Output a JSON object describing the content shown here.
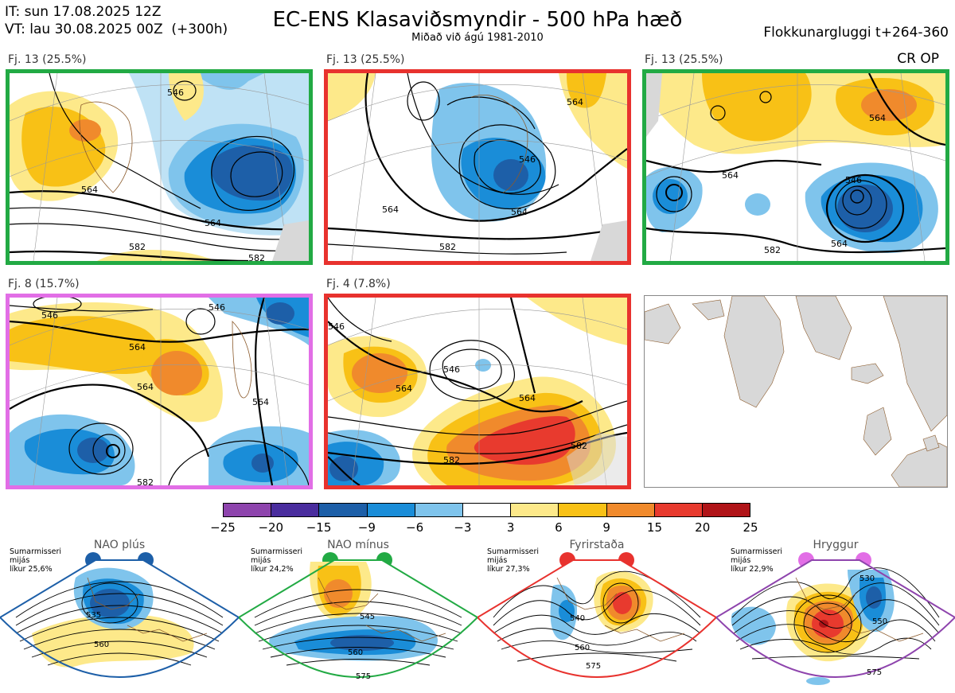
{
  "header": {
    "issue_time": "IT: sun 17.08.2025 12Z",
    "valid_time": "VT: lau 30.08.2025 00Z  (+300h)",
    "title": "EC-ENS Klasaviðsmyndir - 500 hPa hæð",
    "subtitle": "Miðað við ágú 1981-2010",
    "window": "Flokkunargluggi t+264-360",
    "crop_label": "CR OP"
  },
  "panels": [
    {
      "label": "Fj. 13 (25.5%)",
      "border_color": "#22aa44",
      "contours": [
        "546",
        "564",
        "564",
        "582",
        "582"
      ]
    },
    {
      "label": "Fj. 13 (25.5%)",
      "border_color": "#e8322e",
      "contours": [
        "546",
        "564",
        "564",
        "582",
        "564"
      ]
    },
    {
      "label": "Fj. 13 (25.5%)",
      "border_color": "#22aa44",
      "contours": [
        "546",
        "564",
        "564",
        "582",
        "564"
      ]
    },
    {
      "label": "Fj. 8 (15.7%)",
      "border_color": "#e26ee6",
      "contours": [
        "546",
        "546",
        "564",
        "564",
        "564",
        "582"
      ]
    },
    {
      "label": "Fj. 4 (7.8%)",
      "border_color": "#e8322e",
      "contours": [
        "546",
        "546",
        "564",
        "564",
        "582",
        "582"
      ]
    }
  ],
  "colorbar": {
    "colors": [
      "#8e44ad",
      "#4a2d9e",
      "#1d5fa8",
      "#1a8dd8",
      "#7fc4ec",
      "#ffffff",
      "#fde98a",
      "#f8c116",
      "#f08a2c",
      "#e83a2e",
      "#b01418"
    ],
    "ticks": [
      "−25",
      "−20",
      "−15",
      "−9",
      "−6",
      "−3",
      "3",
      "6",
      "9",
      "15",
      "20",
      "25"
    ]
  },
  "regimes": [
    {
      "title": "NAO plús",
      "info": [
        "Sumarmisseri",
        "mijás",
        "líkur 25,6%"
      ],
      "color": "#1d5fa8",
      "labels": [
        "535",
        "560"
      ]
    },
    {
      "title": "NAO mínus",
      "info": [
        "Sumarmisseri",
        "mijás",
        "líkur 24,2%"
      ],
      "color": "#22aa44",
      "labels": [
        "545",
        "560",
        "575"
      ]
    },
    {
      "title": "Fyrirstaða",
      "info": [
        "Sumarmisseri",
        "mijás",
        "líkur 27,3%"
      ],
      "color": "#e8322e",
      "labels": [
        "540",
        "560",
        "575"
      ]
    },
    {
      "title": "Hryggur",
      "info": [
        "Sumarmisseri",
        "mijás",
        "líkur 22,9%"
      ],
      "color": "#e26ee6",
      "labels": [
        "530",
        "550",
        "575"
      ]
    }
  ]
}
